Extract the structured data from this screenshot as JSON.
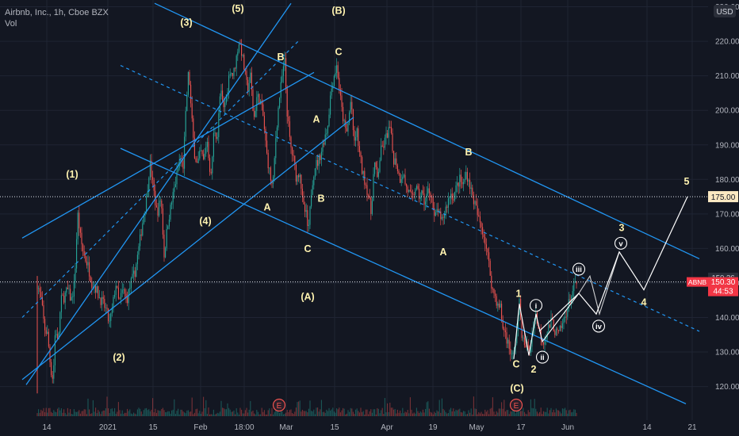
{
  "header": {
    "symbol_line": "Airbnb, Inc., 1h, Cboe BZX",
    "volume_label": "Vol"
  },
  "colors": {
    "background": "#131722",
    "grid": "#1f2433",
    "up_candle": "#26a69a",
    "down_candle": "#ef5350",
    "channel": "#2196f3",
    "projection": "#ffffff",
    "wave_label": "#fff3b0",
    "price_tag": "#f23645",
    "target_tag": "#fbe9c2",
    "axis_text": "#b2b5be"
  },
  "chart_data": {
    "type": "candlestick",
    "symbol": "ABNB",
    "y_axis": {
      "ticks": [
        120,
        130,
        140,
        150,
        160,
        170,
        180,
        190,
        200,
        210,
        220,
        230
      ],
      "tick_labels": [
        "120.00",
        "130.00",
        "140.00",
        "150.00",
        "160.00",
        "170.00",
        "180.00",
        "190.00",
        "200.00",
        "210.00",
        "220.00",
        "230.00"
      ],
      "unit_label": "USD",
      "ylim": [
        112.5,
        231.5
      ]
    },
    "x_axis": {
      "ticks": [
        {
          "label": "14",
          "x": 59
        },
        {
          "label": "2021",
          "x": 136
        },
        {
          "label": "15",
          "x": 193
        },
        {
          "label": "Feb",
          "x": 253
        },
        {
          "label": "18:00",
          "x": 308
        },
        {
          "label": "Mar",
          "x": 361
        },
        {
          "label": "15",
          "x": 422
        },
        {
          "label": "Apr",
          "x": 488
        },
        {
          "label": "19",
          "x": 546
        },
        {
          "label": "May",
          "x": 601
        },
        {
          "label": "17",
          "x": 657
        },
        {
          "label": "Jun",
          "x": 716
        },
        {
          "label": "14",
          "x": 816
        },
        {
          "label": "21",
          "x": 873
        }
      ]
    },
    "price_path": [
      [
        47,
        150
      ],
      [
        52,
        145
      ],
      [
        56,
        137
      ],
      [
        60,
        135
      ],
      [
        64,
        125
      ],
      [
        67,
        122
      ],
      [
        70,
        138
      ],
      [
        73,
        132
      ],
      [
        77,
        145
      ],
      [
        81,
        146
      ],
      [
        85,
        148
      ],
      [
        90,
        145
      ],
      [
        94,
        150
      ],
      [
        98,
        170
      ],
      [
        102,
        162
      ],
      [
        106,
        158
      ],
      [
        111,
        155
      ],
      [
        116,
        150
      ],
      [
        120,
        149
      ],
      [
        125,
        146
      ],
      [
        130,
        144
      ],
      [
        134,
        142
      ],
      [
        138,
        138
      ],
      [
        142,
        143
      ],
      [
        146,
        150
      ],
      [
        150,
        144
      ],
      [
        155,
        148
      ],
      [
        160,
        145
      ],
      [
        165,
        150
      ],
      [
        170,
        153
      ],
      [
        175,
        160
      ],
      [
        180,
        168
      ],
      [
        185,
        175
      ],
      [
        189,
        185
      ],
      [
        193,
        178
      ],
      [
        198,
        170
      ],
      [
        203,
        175
      ],
      [
        207,
        158
      ],
      [
        212,
        168
      ],
      [
        217,
        174
      ],
      [
        222,
        180
      ],
      [
        227,
        186
      ],
      [
        231,
        184
      ],
      [
        235,
        202
      ],
      [
        238,
        212
      ],
      [
        241,
        200
      ],
      [
        245,
        188
      ],
      [
        249,
        184
      ],
      [
        253,
        188
      ],
      [
        257,
        185
      ],
      [
        261,
        192
      ],
      [
        266,
        180
      ],
      [
        270,
        195
      ],
      [
        274,
        192
      ],
      [
        278,
        206
      ],
      [
        282,
        200
      ],
      [
        286,
        205
      ],
      [
        290,
        212
      ],
      [
        294,
        210
      ],
      [
        298,
        215
      ],
      [
        301,
        220
      ],
      [
        304,
        218
      ],
      [
        308,
        212
      ],
      [
        312,
        206
      ],
      [
        316,
        210
      ],
      [
        320,
        197
      ],
      [
        324,
        204
      ],
      [
        328,
        203
      ],
      [
        332,
        198
      ],
      [
        336,
        188
      ],
      [
        340,
        182
      ],
      [
        344,
        177
      ],
      [
        348,
        193
      ],
      [
        352,
        203
      ],
      [
        356,
        210
      ],
      [
        359,
        214
      ],
      [
        362,
        200
      ],
      [
        366,
        190
      ],
      [
        370,
        186
      ],
      [
        374,
        180
      ],
      [
        378,
        183
      ],
      [
        382,
        172
      ],
      [
        386,
        170
      ],
      [
        389,
        164
      ],
      [
        393,
        178
      ],
      [
        397,
        184
      ],
      [
        401,
        185
      ],
      [
        405,
        188
      ],
      [
        409,
        192
      ],
      [
        413,
        195
      ],
      [
        417,
        205
      ],
      [
        421,
        210
      ],
      [
        425,
        213
      ],
      [
        428,
        206
      ],
      [
        431,
        200
      ],
      [
        434,
        196
      ],
      [
        437,
        193
      ],
      [
        440,
        198
      ],
      [
        443,
        204
      ],
      [
        446,
        190
      ],
      [
        450,
        194
      ],
      [
        453,
        188
      ],
      [
        457,
        182
      ],
      [
        461,
        179
      ],
      [
        465,
        175
      ],
      [
        468,
        170
      ],
      [
        472,
        185
      ],
      [
        476,
        180
      ],
      [
        480,
        188
      ],
      [
        484,
        190
      ],
      [
        488,
        193
      ],
      [
        492,
        195
      ],
      [
        496,
        186
      ],
      [
        500,
        185
      ],
      [
        504,
        180
      ],
      [
        508,
        182
      ],
      [
        512,
        178
      ],
      [
        516,
        176
      ],
      [
        520,
        174
      ],
      [
        524,
        178
      ],
      [
        528,
        175
      ],
      [
        532,
        176
      ],
      [
        536,
        173
      ],
      [
        540,
        177
      ],
      [
        544,
        176
      ],
      [
        548,
        168
      ],
      [
        552,
        172
      ],
      [
        556,
        167
      ],
      [
        560,
        170
      ],
      [
        564,
        173
      ],
      [
        568,
        176
      ],
      [
        572,
        175
      ],
      [
        576,
        178
      ],
      [
        580,
        180
      ],
      [
        584,
        178
      ],
      [
        588,
        182
      ],
      [
        592,
        179
      ],
      [
        596,
        175
      ],
      [
        600,
        172
      ],
      [
        604,
        168
      ],
      [
        608,
        166
      ],
      [
        612,
        162
      ],
      [
        615,
        158
      ],
      [
        618,
        153
      ],
      [
        621,
        148
      ],
      [
        625,
        146
      ],
      [
        628,
        143
      ],
      [
        631,
        143
      ],
      [
        634,
        137
      ],
      [
        637,
        136
      ],
      [
        640,
        133
      ],
      [
        643,
        131
      ],
      [
        646,
        128
      ],
      [
        649,
        131
      ],
      [
        652,
        137
      ],
      [
        655,
        144
      ],
      [
        658,
        136
      ],
      [
        661,
        131
      ],
      [
        664,
        133
      ],
      [
        667,
        129
      ],
      [
        670,
        133
      ],
      [
        673,
        139
      ],
      [
        676,
        141
      ],
      [
        679,
        137
      ],
      [
        682,
        135
      ],
      [
        685,
        133
      ],
      [
        688,
        135
      ],
      [
        692,
        137
      ],
      [
        696,
        139
      ],
      [
        700,
        136
      ],
      [
        704,
        135
      ],
      [
        708,
        137
      ],
      [
        712,
        140
      ],
      [
        716,
        143
      ],
      [
        720,
        146
      ],
      [
        724,
        149
      ],
      [
        728,
        150
      ]
    ],
    "current_price": 150.3,
    "current_price_label": "150.30",
    "current_price_time_label": "44:53",
    "last_close_label": "150.36",
    "target_level": 175.0,
    "target_level_label": "175.00",
    "volume_markers": [
      "E",
      "E"
    ],
    "projection_path": [
      [
        680,
        136
      ],
      [
        730,
        147
      ],
      [
        752,
        141
      ],
      [
        781,
        159
      ],
      [
        812,
        148
      ],
      [
        867,
        175
      ]
    ],
    "wave_labels": [
      {
        "text": "(1)",
        "x": 91,
        "price": 180.5
      },
      {
        "text": "(2)",
        "x": 150,
        "price": 127.5
      },
      {
        "text": "(3)",
        "x": 235,
        "price": 224.5
      },
      {
        "text": "(4)",
        "x": 259,
        "price": 167.0
      },
      {
        "text": "(5)",
        "x": 300,
        "price": 228.5
      },
      {
        "text": "(B)",
        "x": 427,
        "price": 228.0
      },
      {
        "text": "(A)",
        "x": 388,
        "price": 145.0
      },
      {
        "text": "(C)",
        "x": 652,
        "price": 118.5
      },
      {
        "text": "A",
        "x": 337,
        "price": 171.0
      },
      {
        "text": "B",
        "x": 354,
        "price": 214.5
      },
      {
        "text": "C",
        "x": 388,
        "price": 159.0
      },
      {
        "text": "A",
        "x": 399,
        "price": 196.5
      },
      {
        "text": "B",
        "x": 405,
        "price": 173.5
      },
      {
        "text": "C",
        "x": 427,
        "price": 216.0
      },
      {
        "text": "A",
        "x": 559,
        "price": 158.0
      },
      {
        "text": "B",
        "x": 591,
        "price": 187.0
      },
      {
        "text": "C",
        "x": 651,
        "price": 125.5
      },
      {
        "text": "1",
        "x": 654,
        "price": 146.0
      },
      {
        "text": "2",
        "x": 673,
        "price": 124.0
      },
      {
        "text": "3",
        "x": 784,
        "price": 165.0
      },
      {
        "text": "4",
        "x": 812,
        "price": 143.5
      },
      {
        "text": "5",
        "x": 866,
        "price": 178.5
      }
    ],
    "circled_labels": [
      {
        "text": "i",
        "x": 676,
        "price": 143.5
      },
      {
        "text": "ii",
        "x": 684,
        "price": 128.5
      },
      {
        "text": "iii",
        "x": 730,
        "price": 154.0
      },
      {
        "text": "iv",
        "x": 755,
        "price": 137.5
      },
      {
        "text": "v",
        "x": 783,
        "price": 161.5
      }
    ],
    "xlabel": "",
    "ylabel": ""
  }
}
